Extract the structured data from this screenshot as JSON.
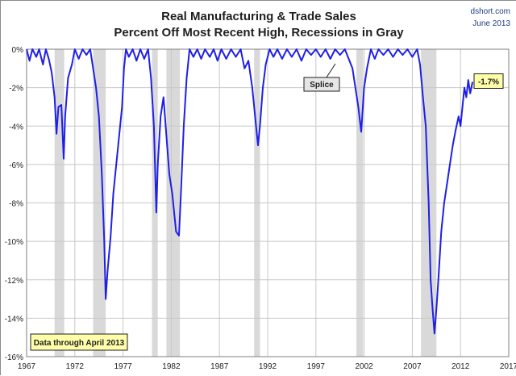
{
  "chart_data": {
    "type": "line",
    "title": "Real Manufacturing & Trade Sales",
    "subtitle": "Percent Off Most Recent High, Recessions in Gray",
    "source": "dshort.com",
    "date": "June 2013",
    "xlim": [
      1967,
      2017
    ],
    "ylim": [
      -16,
      0
    ],
    "x_ticks": [
      1967,
      1972,
      1977,
      1982,
      1987,
      1992,
      1997,
      2002,
      2007,
      2012,
      2017
    ],
    "y_ticks": [
      0,
      -2,
      -4,
      -6,
      -8,
      -10,
      -12,
      -14,
      -16
    ],
    "y_tick_labels": [
      "0%",
      "-2%",
      "-4%",
      "-6%",
      "-8%",
      "-10%",
      "-12%",
      "-14%",
      "-16%"
    ],
    "grid": true,
    "series_color": "#1f1fe8",
    "recession_color": "#d9d9d9",
    "recessions": [
      [
        1969.9,
        1970.9
      ],
      [
        1973.9,
        1975.2
      ],
      [
        1980.0,
        1980.6
      ],
      [
        1981.5,
        1982.9
      ],
      [
        1990.6,
        1991.2
      ],
      [
        2001.2,
        2001.9
      ],
      [
        2007.9,
        2009.5
      ]
    ],
    "series": [
      {
        "values": [
          [
            1967.0,
            0
          ],
          [
            1967.3,
            -0.6
          ],
          [
            1967.6,
            0
          ],
          [
            1968.0,
            -0.4
          ],
          [
            1968.3,
            0
          ],
          [
            1968.7,
            -0.8
          ],
          [
            1969.0,
            0
          ],
          [
            1969.3,
            -0.5
          ],
          [
            1969.6,
            -1.2
          ],
          [
            1969.9,
            -2.5
          ],
          [
            1970.1,
            -4.4
          ],
          [
            1970.3,
            -3.0
          ],
          [
            1970.6,
            -2.9
          ],
          [
            1970.85,
            -5.7
          ],
          [
            1971.0,
            -3.5
          ],
          [
            1971.3,
            -1.5
          ],
          [
            1971.7,
            -0.8
          ],
          [
            1972.0,
            0
          ],
          [
            1972.4,
            -0.5
          ],
          [
            1972.8,
            0
          ],
          [
            1973.2,
            -0.3
          ],
          [
            1973.6,
            0
          ],
          [
            1973.9,
            -1.0
          ],
          [
            1974.2,
            -2.0
          ],
          [
            1974.5,
            -3.5
          ],
          [
            1974.8,
            -6.5
          ],
          [
            1975.05,
            -10.0
          ],
          [
            1975.2,
            -13.0
          ],
          [
            1975.4,
            -11.5
          ],
          [
            1975.7,
            -9.8
          ],
          [
            1976.0,
            -7.5
          ],
          [
            1976.3,
            -6.0
          ],
          [
            1976.6,
            -4.5
          ],
          [
            1976.9,
            -3.0
          ],
          [
            1977.1,
            -1.0
          ],
          [
            1977.3,
            0
          ],
          [
            1977.6,
            -0.4
          ],
          [
            1978.0,
            0
          ],
          [
            1978.4,
            -0.6
          ],
          [
            1978.8,
            0
          ],
          [
            1979.2,
            -0.5
          ],
          [
            1979.6,
            0
          ],
          [
            1979.9,
            -1.5
          ],
          [
            1980.2,
            -4.0
          ],
          [
            1980.45,
            -8.5
          ],
          [
            1980.6,
            -6.0
          ],
          [
            1980.9,
            -3.5
          ],
          [
            1981.2,
            -2.5
          ],
          [
            1981.5,
            -4.5
          ],
          [
            1981.8,
            -6.5
          ],
          [
            1982.1,
            -7.5
          ],
          [
            1982.5,
            -9.5
          ],
          [
            1982.8,
            -9.7
          ],
          [
            1983.0,
            -7.5
          ],
          [
            1983.3,
            -4.0
          ],
          [
            1983.6,
            -1.5
          ],
          [
            1983.9,
            0
          ],
          [
            1984.3,
            -0.4
          ],
          [
            1984.7,
            0
          ],
          [
            1985.1,
            -0.5
          ],
          [
            1985.5,
            0
          ],
          [
            1986.0,
            -0.4
          ],
          [
            1986.4,
            0
          ],
          [
            1986.8,
            -0.6
          ],
          [
            1987.2,
            0
          ],
          [
            1987.7,
            -0.5
          ],
          [
            1988.2,
            0
          ],
          [
            1988.7,
            -0.4
          ],
          [
            1989.2,
            0
          ],
          [
            1989.6,
            -1.0
          ],
          [
            1990.0,
            -0.6
          ],
          [
            1990.4,
            -2.0
          ],
          [
            1990.8,
            -4.0
          ],
          [
            1991.0,
            -5.0
          ],
          [
            1991.2,
            -4.0
          ],
          [
            1991.5,
            -2.0
          ],
          [
            1991.8,
            -0.8
          ],
          [
            1992.2,
            0
          ],
          [
            1992.6,
            -0.4
          ],
          [
            1993.0,
            0
          ],
          [
            1993.5,
            -0.5
          ],
          [
            1994.0,
            0
          ],
          [
            1994.5,
            -0.4
          ],
          [
            1995.0,
            0
          ],
          [
            1995.5,
            -0.6
          ],
          [
            1996.0,
            0
          ],
          [
            1996.5,
            -0.3
          ],
          [
            1997.0,
            0
          ],
          [
            1997.5,
            -0.4
          ],
          [
            1998.0,
            0
          ],
          [
            1998.5,
            -0.5
          ],
          [
            1999.0,
            0
          ],
          [
            1999.5,
            -0.3
          ],
          [
            2000.0,
            0
          ],
          [
            2000.4,
            -0.5
          ],
          [
            2000.8,
            -1.0
          ],
          [
            2001.1,
            -2.0
          ],
          [
            2001.4,
            -3.0
          ],
          [
            2001.7,
            -4.3
          ],
          [
            2002.0,
            -2.0
          ],
          [
            2002.3,
            -1.0
          ],
          [
            2002.7,
            0
          ],
          [
            2003.1,
            -0.5
          ],
          [
            2003.5,
            0
          ],
          [
            2004.0,
            -0.3
          ],
          [
            2004.5,
            0
          ],
          [
            2005.0,
            -0.4
          ],
          [
            2005.5,
            0
          ],
          [
            2006.0,
            -0.3
          ],
          [
            2006.5,
            0
          ],
          [
            2007.0,
            -0.4
          ],
          [
            2007.5,
            0
          ],
          [
            2007.8,
            -0.8
          ],
          [
            2008.1,
            -2.5
          ],
          [
            2008.4,
            -4.0
          ],
          [
            2008.7,
            -8.0
          ],
          [
            2008.9,
            -12.0
          ],
          [
            2009.1,
            -13.5
          ],
          [
            2009.3,
            -14.8
          ],
          [
            2009.5,
            -13.5
          ],
          [
            2009.7,
            -12.0
          ],
          [
            2010.0,
            -9.5
          ],
          [
            2010.3,
            -8.0
          ],
          [
            2010.6,
            -7.0
          ],
          [
            2010.9,
            -6.0
          ],
          [
            2011.2,
            -5.0
          ],
          [
            2011.5,
            -4.2
          ],
          [
            2011.8,
            -3.5
          ],
          [
            2012.0,
            -4.0
          ],
          [
            2012.2,
            -3.0
          ],
          [
            2012.4,
            -2.0
          ],
          [
            2012.6,
            -2.5
          ],
          [
            2012.8,
            -1.6
          ],
          [
            2013.0,
            -2.3
          ],
          [
            2013.25,
            -1.7
          ]
        ]
      }
    ],
    "annotations": {
      "last_value_label": "-1.7%",
      "splice_label": "Splice",
      "note": "Data through April 2013"
    }
  }
}
